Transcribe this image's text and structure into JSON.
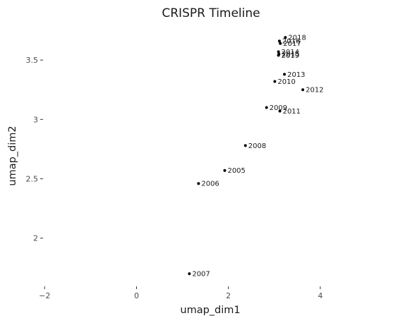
{
  "chart_data": {
    "type": "scatter",
    "title": "CRISPR Timeline",
    "xlabel": "umap_dim1",
    "ylabel": "umap_dim2",
    "xlim": [
      -2.05,
      5.2
    ],
    "ylim": [
      1.6,
      3.78
    ],
    "xticks": [
      -2,
      0,
      2,
      4
    ],
    "xtick_labels": [
      "−2",
      "0",
      "2",
      "4"
    ],
    "yticks": [
      2,
      2.5,
      3,
      3.5
    ],
    "ytick_labels": [
      "2",
      "2.5",
      "3",
      "3.5"
    ],
    "grid": false,
    "legend": "none",
    "point_color": "#000000",
    "points": [
      {
        "label": "2005",
        "x": 1.92,
        "y": 2.57
      },
      {
        "label": "2006",
        "x": 1.35,
        "y": 2.46
      },
      {
        "label": "2007",
        "x": 1.15,
        "y": 1.7
      },
      {
        "label": "2008",
        "x": 2.37,
        "y": 2.78
      },
      {
        "label": "2009",
        "x": 2.83,
        "y": 3.1
      },
      {
        "label": "2010",
        "x": 3.01,
        "y": 3.32
      },
      {
        "label": "2011",
        "x": 3.12,
        "y": 3.07
      },
      {
        "label": "2012",
        "x": 3.62,
        "y": 3.25
      },
      {
        "label": "2013",
        "x": 3.22,
        "y": 3.38
      },
      {
        "label": "2014",
        "x": 3.09,
        "y": 3.57
      },
      {
        "label": "2015",
        "x": 3.1,
        "y": 3.55
      },
      {
        "label": "2016",
        "x": 3.11,
        "y": 3.66
      },
      {
        "label": "2017",
        "x": 3.13,
        "y": 3.64
      },
      {
        "label": "2018",
        "x": 3.24,
        "y": 3.69
      },
      {
        "label": "2019",
        "x": 3.09,
        "y": 3.54
      }
    ]
  }
}
